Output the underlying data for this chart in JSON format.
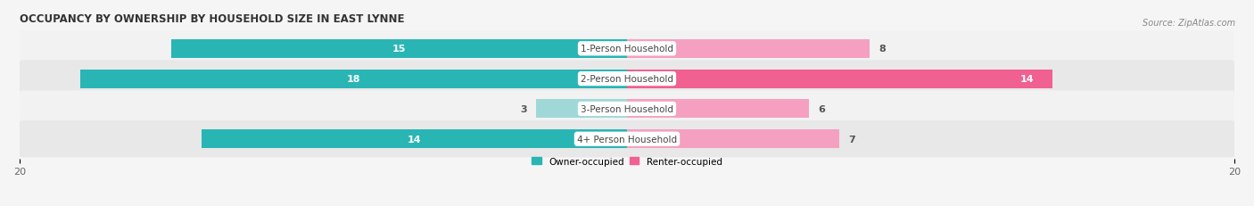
{
  "title": "OCCUPANCY BY OWNERSHIP BY HOUSEHOLD SIZE IN EAST LYNNE",
  "source": "Source: ZipAtlas.com",
  "categories": [
    "1-Person Household",
    "2-Person Household",
    "3-Person Household",
    "4+ Person Household"
  ],
  "owner_values": [
    15,
    18,
    3,
    14
  ],
  "renter_values": [
    8,
    14,
    6,
    7
  ],
  "owner_color": "#2ab5b5",
  "owner_light_color": "#a0d8d8",
  "renter_color": "#f06090",
  "renter_light_color": "#f5a0c0",
  "row_colors": [
    "#f2f2f2",
    "#e8e8e8",
    "#f2f2f2",
    "#e8e8e8"
  ],
  "bg_color": "#f5f5f5",
  "axis_max": 20,
  "legend_owner": "Owner-occupied",
  "legend_renter": "Renter-occupied",
  "title_fontsize": 8.5,
  "label_fontsize": 7.5,
  "value_fontsize": 8,
  "tick_fontsize": 8,
  "source_fontsize": 7
}
